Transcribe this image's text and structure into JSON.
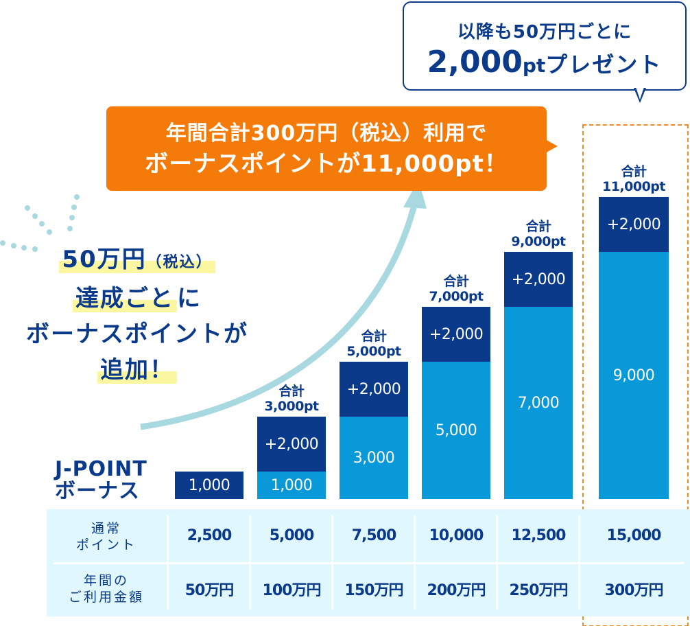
{
  "colors": {
    "navy": "#0b3a8a",
    "light_blue": "#0a99d8",
    "orange": "#f47b0a",
    "table_bg": "#e0f7fd",
    "arrow": "#a8d8e0",
    "highlight": "#fbf7a0"
  },
  "bubble": {
    "line1": "以降も50万円ごとに",
    "line2_num": "2,000",
    "line2_unit": "pt",
    "line2_rest": "プレゼント"
  },
  "orange_callout": {
    "line1": "年間合計300万円（税込）利用で",
    "line2": "ボーナスポイントが11,000pt！"
  },
  "left_text": {
    "line1_main": "50万円",
    "line1_small": "（税込）",
    "line2_hl": "達成ごと",
    "line2_rest": "に",
    "line3": "ボーナスポイントが",
    "line4": "追加！"
  },
  "legend_label": {
    "line1": "J-POINT",
    "line2": "ボーナス"
  },
  "chart_data": {
    "type": "bar",
    "stacked": true,
    "categories": [
      "50万円",
      "100万円",
      "150万円",
      "200万円",
      "250万円",
      "300万円"
    ],
    "series": [
      {
        "values": [
          0,
          1000,
          3000,
          5000,
          7000,
          9000
        ],
        "labels": [
          "",
          "1,000",
          "3,000",
          "5,000",
          "7,000",
          "9,000"
        ],
        "color": "#0a99d8"
      },
      {
        "values": [
          1000,
          2000,
          2000,
          2000,
          2000,
          2000
        ],
        "labels": [
          "1,000",
          "+2,000",
          "+2,000",
          "+2,000",
          "+2,000",
          "+2,000"
        ],
        "color": "#0b3a8a"
      }
    ],
    "totals": [
      {
        "l1": "",
        "l2": ""
      },
      {
        "l1": "合計",
        "l2": "3,000pt"
      },
      {
        "l1": "合計",
        "l2": "5,000pt"
      },
      {
        "l1": "合計",
        "l2": "7,000pt"
      },
      {
        "l1": "合計",
        "l2": "9,000pt"
      },
      {
        "l1": "合計",
        "l2": "11,000pt"
      }
    ],
    "ylim": [
      0,
      11000
    ]
  },
  "table": {
    "row1_head": {
      "l1": "通常",
      "l2": "ポイント"
    },
    "row1": [
      "2,500",
      "5,000",
      "7,500",
      "10,000",
      "12,500",
      "15,000"
    ],
    "row2_head": {
      "l1": "年間の",
      "l2": "ご利用金額"
    },
    "row2": [
      "50万円",
      "100万円",
      "150万円",
      "200万円",
      "250万円",
      "300万円"
    ]
  }
}
